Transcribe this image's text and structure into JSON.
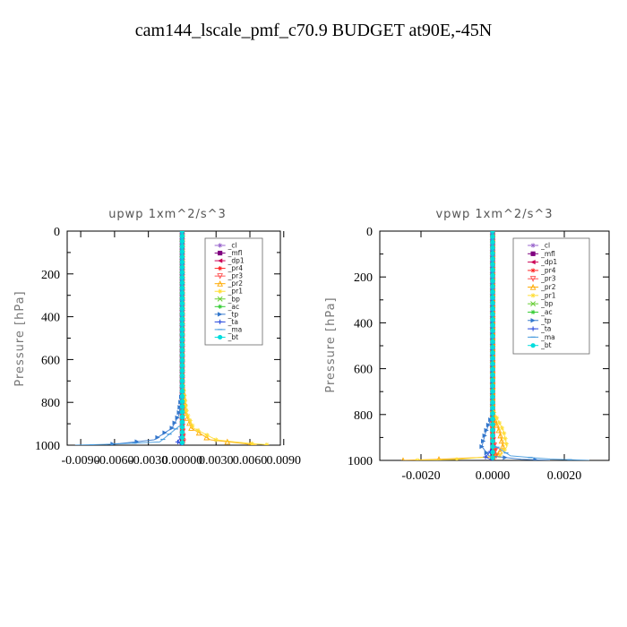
{
  "figure_title": "cam144_lscale_pmf_c70.9  BUDGET at90E,-45N",
  "chart_data": [
    {
      "type": "line",
      "title": "upwp   1xm^2/s^3",
      "xlabel": "",
      "ylabel": "Pressure  [hPa]",
      "xlim": [
        -0.0102,
        0.0087
      ],
      "ylim": [
        1000,
        0
      ],
      "grid": false,
      "legend_position": "top-right",
      "x_ticks": [
        "-0.0090",
        "-0.0060",
        "-0.0030",
        "0.00000",
        "0.0030",
        "0.0060",
        "0.0090"
      ],
      "x_tick_values": [
        -0.009,
        -0.006,
        -0.003,
        0.0,
        0.003,
        0.006,
        0.009
      ],
      "y_ticks": [
        "0",
        "200",
        "400",
        "600",
        "800",
        "1000"
      ],
      "y_tick_values": [
        0,
        200,
        400,
        600,
        800,
        1000
      ],
      "series": [
        {
          "name": "_cl",
          "color": "#9966cc",
          "marker": "star",
          "points": [
            [
              0,
              0
            ],
            [
              0,
              200
            ],
            [
              0,
              400
            ],
            [
              0,
              600
            ],
            [
              0,
              800
            ],
            [
              0,
              1000
            ]
          ]
        },
        {
          "name": "_mfl",
          "color": "#800080",
          "marker": "square",
          "points": [
            [
              0,
              0
            ],
            [
              0,
              200
            ],
            [
              0,
              400
            ],
            [
              0,
              600
            ],
            [
              0,
              800
            ],
            [
              0,
              1000
            ]
          ]
        },
        {
          "name": "_dp1",
          "color": "#cc0055",
          "marker": "triangle-left",
          "points": [
            [
              0,
              0
            ],
            [
              0,
              200
            ],
            [
              0,
              400
            ],
            [
              0,
              600
            ],
            [
              0,
              800
            ],
            [
              0,
              1000
            ]
          ]
        },
        {
          "name": "_pr4",
          "color": "#ff2222",
          "marker": "star",
          "points": [
            [
              0,
              0
            ],
            [
              0,
              500
            ],
            [
              0,
              900
            ],
            [
              0.0001,
              980
            ],
            [
              0,
              1000
            ]
          ]
        },
        {
          "name": "_pr3",
          "color": "#ff5555",
          "marker": "triangle-down",
          "points": [
            [
              0,
              0
            ],
            [
              0,
              500
            ],
            [
              0,
              900
            ],
            [
              0.0001,
              985
            ],
            [
              0,
              1000
            ]
          ]
        },
        {
          "name": "_pr2",
          "color": "#ffaa00",
          "marker": "triangle-up",
          "points": [
            [
              0,
              0
            ],
            [
              0,
              700
            ],
            [
              0.0003,
              850
            ],
            [
              0.0008,
              920
            ],
            [
              0.0025,
              975
            ],
            [
              0.0055,
              993
            ],
            [
              0.0066,
              1000
            ]
          ]
        },
        {
          "name": "_pr1",
          "color": "#ffdd33",
          "marker": "star",
          "points": [
            [
              0,
              0
            ],
            [
              0,
              700
            ],
            [
              0.0004,
              850
            ],
            [
              0.001,
              920
            ],
            [
              0.003,
              975
            ],
            [
              0.0062,
              993
            ],
            [
              0.0075,
              998
            ]
          ]
        },
        {
          "name": "_bp",
          "color": "#66cc33",
          "marker": "cross",
          "points": [
            [
              0,
              0
            ],
            [
              0,
              1000
            ]
          ]
        },
        {
          "name": "_ac",
          "color": "#33cc33",
          "marker": "star",
          "points": [
            [
              0,
              0
            ],
            [
              0,
              1000
            ]
          ]
        },
        {
          "name": "_tp",
          "color": "#3377cc",
          "marker": "triangle-right",
          "points": [
            [
              0,
              0
            ],
            [
              0,
              750
            ],
            [
              -0.0003,
              860
            ],
            [
              -0.0009,
              920
            ],
            [
              -0.0025,
              975
            ],
            [
              -0.0055,
              992
            ],
            [
              -0.0068,
              997
            ]
          ]
        },
        {
          "name": "_ta",
          "color": "#2244dd",
          "marker": "plus",
          "points": [
            [
              0,
              0
            ],
            [
              0,
              950
            ],
            [
              -0.0004,
              985
            ],
            [
              0,
              1000
            ]
          ]
        },
        {
          "name": "_ma",
          "color": "#4499dd",
          "marker": "dash",
          "points": [
            [
              0,
              0
            ],
            [
              0,
              900
            ],
            [
              -0.002,
              985
            ],
            [
              -0.0065,
              996
            ],
            [
              -0.0095,
              1000
            ]
          ]
        },
        {
          "name": "_bt",
          "color": "#00dddd",
          "marker": "circle",
          "points": [
            [
              0,
              0
            ],
            [
              0,
              1000
            ]
          ]
        }
      ]
    },
    {
      "type": "line",
      "title": "vpwp   1xm^2/s^3",
      "xlabel": "",
      "ylabel": "Pressure  [hPa]",
      "xlim": [
        -0.00315,
        0.00325
      ],
      "ylim": [
        1000,
        0
      ],
      "grid": false,
      "legend_position": "top-right",
      "x_ticks": [
        "-0.0020",
        "0.0000",
        "0.0020"
      ],
      "x_tick_values": [
        -0.002,
        0.0,
        0.002
      ],
      "y_ticks": [
        "0",
        "200",
        "400",
        "600",
        "800",
        "1000"
      ],
      "y_tick_values": [
        0,
        200,
        400,
        600,
        800,
        1000
      ],
      "series": [
        {
          "name": "_cl",
          "color": "#9966cc",
          "marker": "star",
          "points": [
            [
              0,
              0
            ],
            [
              0,
              200
            ],
            [
              0,
              400
            ],
            [
              0,
              600
            ],
            [
              0,
              800
            ],
            [
              0,
              1000
            ]
          ]
        },
        {
          "name": "_mfl",
          "color": "#800080",
          "marker": "square",
          "points": [
            [
              0,
              0
            ],
            [
              0,
              200
            ],
            [
              0,
              400
            ],
            [
              0,
              600
            ],
            [
              0,
              800
            ],
            [
              0,
              1000
            ]
          ]
        },
        {
          "name": "_dp1",
          "color": "#cc0055",
          "marker": "triangle-left",
          "points": [
            [
              0,
              0
            ],
            [
              0,
              200
            ],
            [
              0,
              400
            ],
            [
              0,
              600
            ],
            [
              0,
              800
            ],
            [
              0,
              1000
            ]
          ]
        },
        {
          "name": "_pr4",
          "color": "#ff2222",
          "marker": "star",
          "points": [
            [
              0,
              0
            ],
            [
              0,
              900
            ],
            [
              0.0001,
              975
            ],
            [
              0,
              1000
            ]
          ]
        },
        {
          "name": "_pr3",
          "color": "#ff5555",
          "marker": "triangle-down",
          "points": [
            [
              0,
              0
            ],
            [
              0,
              900
            ],
            [
              0.0001,
              980
            ],
            [
              0,
              1000
            ]
          ]
        },
        {
          "name": "_pr2",
          "color": "#ffaa00",
          "marker": "triangle-up",
          "points": [
            [
              0,
              0
            ],
            [
              0,
              800
            ],
            [
              0.0002,
              880
            ],
            [
              0.0003,
              950
            ],
            [
              0,
              985
            ],
            [
              -0.0015,
              995
            ],
            [
              -0.0025,
              1000
            ]
          ]
        },
        {
          "name": "_pr1",
          "color": "#ffdd33",
          "marker": "star",
          "points": [
            [
              0,
              0
            ],
            [
              0,
              780
            ],
            [
              0.0003,
              870
            ],
            [
              0.0004,
              940
            ],
            [
              0.0002,
              980
            ],
            [
              -0.001,
              996
            ],
            [
              -0.0021,
              1000
            ]
          ]
        },
        {
          "name": "_bp",
          "color": "#66cc33",
          "marker": "cross",
          "points": [
            [
              0,
              0
            ],
            [
              0,
              1000
            ]
          ]
        },
        {
          "name": "_ac",
          "color": "#33cc33",
          "marker": "star",
          "points": [
            [
              0,
              0
            ],
            [
              0,
              1000
            ]
          ]
        },
        {
          "name": "_tp",
          "color": "#3377cc",
          "marker": "triangle-right",
          "points": [
            [
              0,
              0
            ],
            [
              0,
              800
            ],
            [
              -0.0002,
              880
            ],
            [
              -0.0003,
              940
            ],
            [
              -0.0001,
              980
            ],
            [
              0.0008,
              995
            ],
            [
              0.0016,
              1000
            ]
          ]
        },
        {
          "name": "_ta",
          "color": "#2244dd",
          "marker": "plus",
          "points": [
            [
              0,
              0
            ],
            [
              0,
              950
            ],
            [
              -0.0002,
              985
            ],
            [
              0,
              1000
            ]
          ]
        },
        {
          "name": "_ma",
          "color": "#4499dd",
          "marker": "dash",
          "points": [
            [
              0,
              0
            ],
            [
              0,
              930
            ],
            [
              0.0005,
              980
            ],
            [
              0.0016,
              994
            ],
            [
              0.0027,
              1000
            ]
          ]
        },
        {
          "name": "_bt",
          "color": "#00dddd",
          "marker": "circle",
          "points": [
            [
              0,
              0
            ],
            [
              0,
              1000
            ]
          ]
        }
      ]
    }
  ]
}
